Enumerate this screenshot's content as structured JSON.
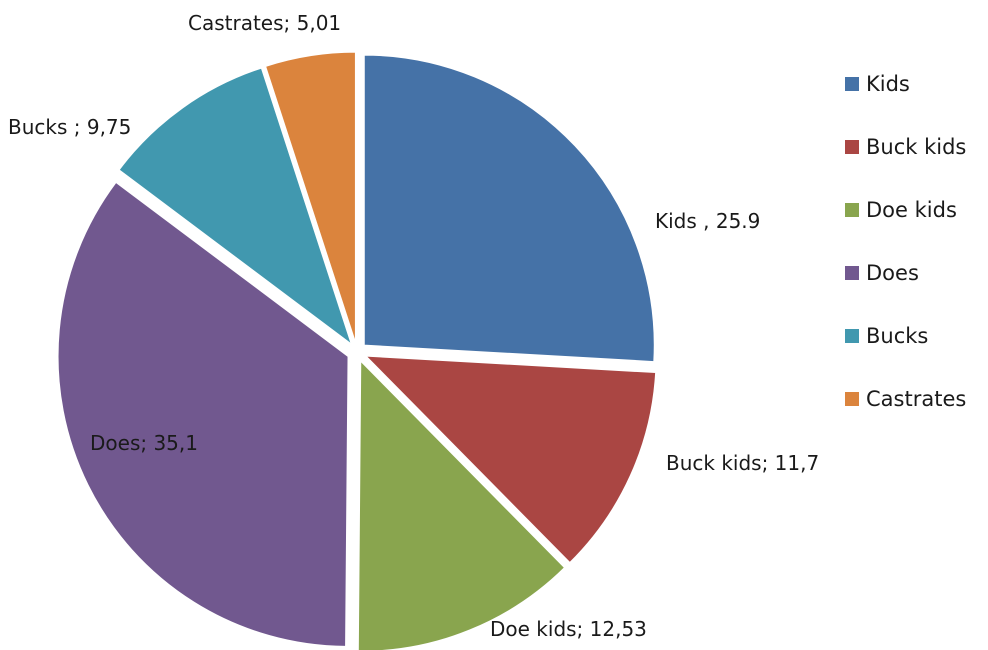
{
  "chart_data": {
    "type": "pie",
    "title": "",
    "start_angle_deg": 0,
    "direction": "clockwise",
    "legend_position": "right",
    "slices": [
      {
        "name": "Kids",
        "value": 25.9,
        "color": "#4572A7",
        "label": "Kids , 25.9"
      },
      {
        "name": "Buck kids",
        "value": 11.7,
        "color": "#AA4643",
        "label": "Buck kids; 11,7"
      },
      {
        "name": "Doe kids",
        "value": 12.53,
        "color": "#89A54E",
        "label": "Doe kids; 12,53"
      },
      {
        "name": "Does",
        "value": 35.1,
        "color": "#71588F",
        "label": "Does; 35,1"
      },
      {
        "name": "Bucks",
        "value": 9.75,
        "color": "#4198AF",
        "label": "Bucks ; 9,75"
      },
      {
        "name": "Castrates",
        "value": 5.01,
        "color": "#DB843D",
        "label": "Castrates; 5,01"
      }
    ]
  }
}
